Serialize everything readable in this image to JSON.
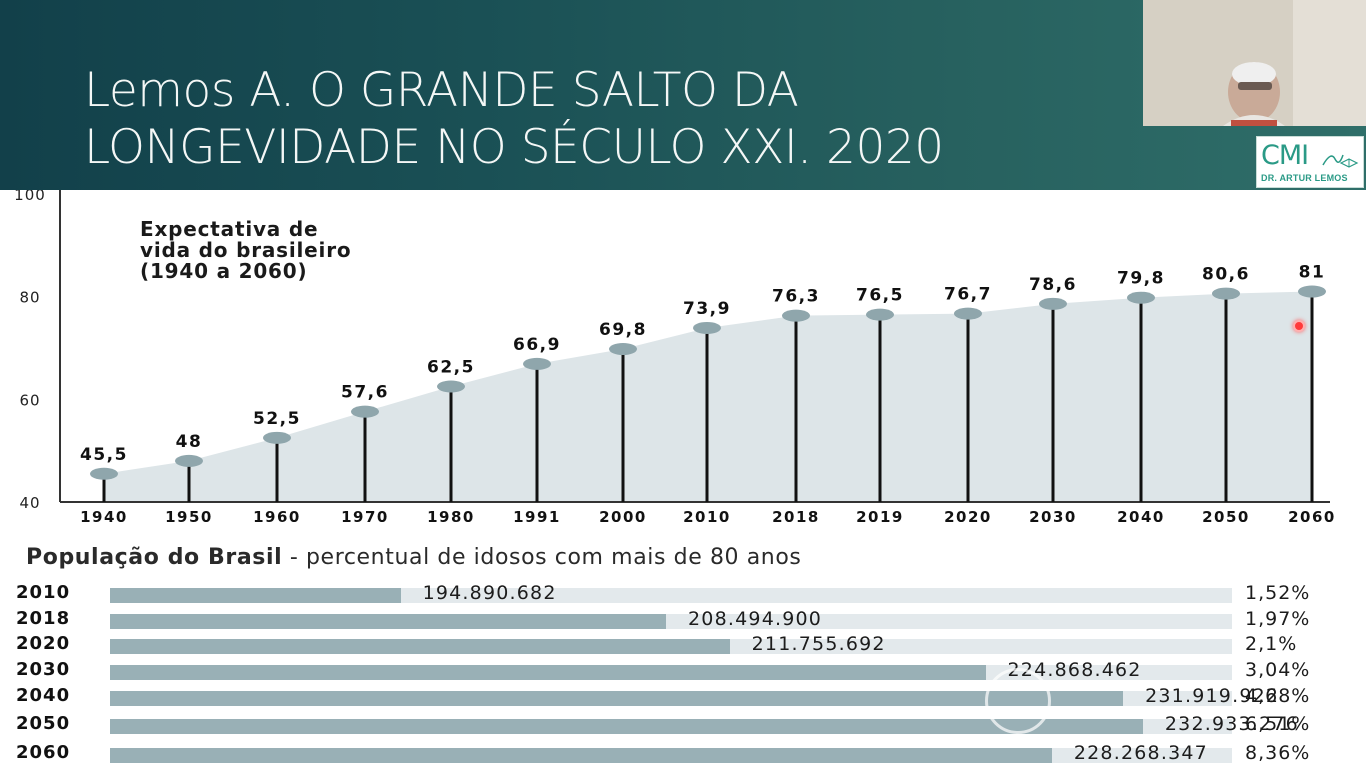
{
  "slide": {
    "title_line1": "Lemos A. O GRANDE SALTO DA",
    "title_line2": "LONGEVIDADE NO SÉCULO XXI. 2020"
  },
  "logo": {
    "text": "CMI",
    "subtitle": "DR. ARTUR LEMOS"
  },
  "colors": {
    "header": "#1a5055",
    "logo": "#2a9a86",
    "area_fill": "#dde5e8",
    "marker": "#8fa6ac",
    "bar_fill": "#99b0b6",
    "bar_track": "#e3e9ec"
  },
  "chart_data": [
    {
      "type": "line",
      "title_lines": [
        "Expectativa de",
        "vida do brasileiro",
        "(1940 a 2060)"
      ],
      "categories": [
        "1940",
        "1950",
        "1960",
        "1970",
        "1980",
        "1991",
        "2000",
        "2010",
        "2018",
        "2019",
        "2020",
        "2030",
        "2040",
        "2050",
        "2060"
      ],
      "values": [
        45.5,
        48,
        52.5,
        57.6,
        62.5,
        66.9,
        69.8,
        73.9,
        76.3,
        76.5,
        76.7,
        78.6,
        79.8,
        80.6,
        81
      ],
      "value_labels": [
        "45,5",
        "48",
        "52,5",
        "57,6",
        "62,5",
        "66,9",
        "69,8",
        "73,9",
        "76,3",
        "76,5",
        "76,7",
        "78,6",
        "79,8",
        "80,6",
        "81"
      ],
      "y_ticks": [
        "40",
        "60",
        "80",
        "100"
      ],
      "ylim": [
        40,
        100
      ],
      "grid": false,
      "area_filled": true
    },
    {
      "type": "bar",
      "title_bold": "População do Brasil",
      "title_rest": " - percentual de idosos com mais de 80 anos",
      "categories": [
        "2010",
        "2018",
        "2020",
        "2030",
        "2040",
        "2050",
        "2060"
      ],
      "population": [
        194890682,
        208494900,
        211755692,
        224868462,
        231919922,
        232933276,
        228268347
      ],
      "population_labels": [
        "194.890.682",
        "208.494.900",
        "211.755.692",
        "224.868.462",
        "231.919.922",
        "232.933.276",
        "228.268.347"
      ],
      "percent_over_80": [
        1.52,
        1.97,
        2.1,
        3.04,
        4.68,
        6.51,
        8.36
      ],
      "percent_labels": [
        "1,52%",
        "1,97%",
        "2,1%",
        "3,04%",
        "4,68%",
        "6,51%",
        "8,36%"
      ]
    }
  ]
}
